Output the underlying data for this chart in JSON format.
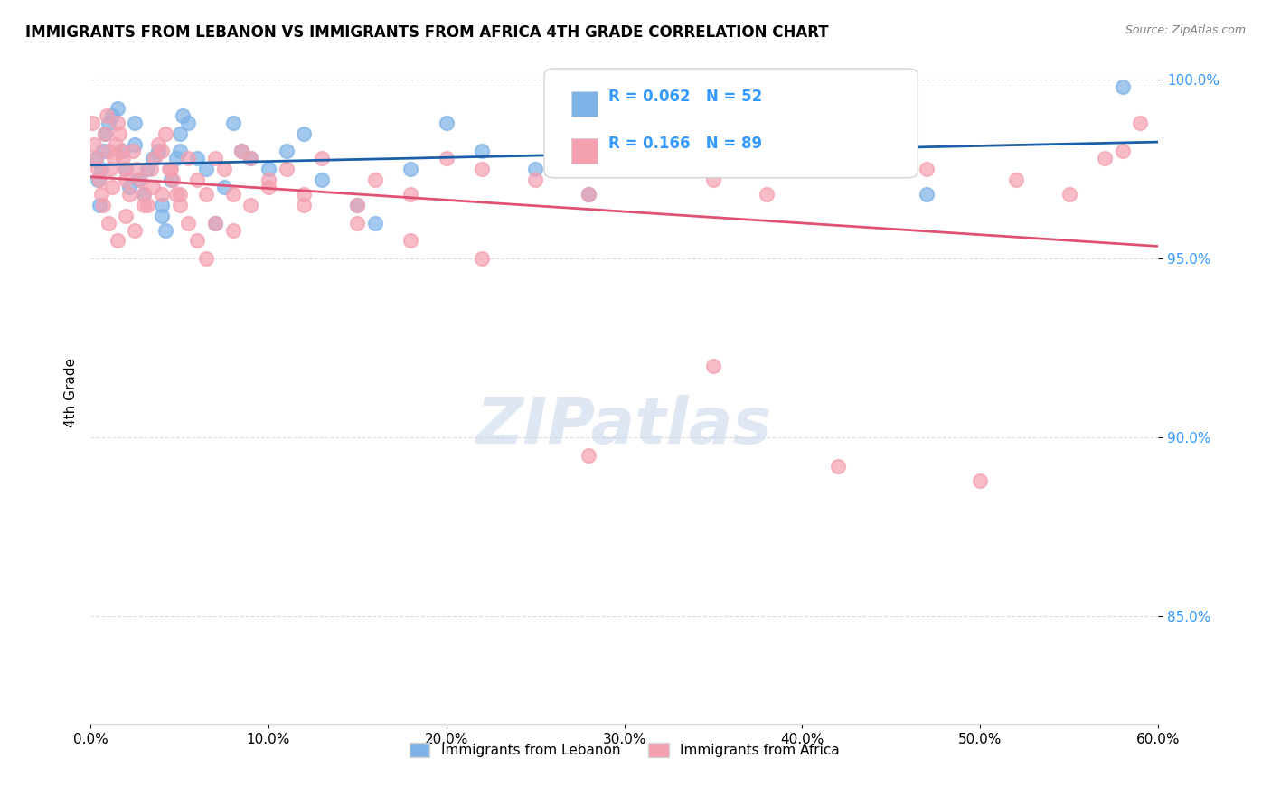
{
  "title": "IMMIGRANTS FROM LEBANON VS IMMIGRANTS FROM AFRICA 4TH GRADE CORRELATION CHART",
  "source": "Source: ZipAtlas.com",
  "xlabel_label": "",
  "ylabel_label": "4th Grade",
  "xlim": [
    0.0,
    0.6
  ],
  "ylim": [
    0.82,
    1.005
  ],
  "xtick_labels": [
    "0.0%",
    "10.0%",
    "20.0%",
    "30.0%",
    "40.0%",
    "50.0%",
    "60.0%"
  ],
  "xtick_values": [
    0.0,
    0.1,
    0.2,
    0.3,
    0.4,
    0.5,
    0.6
  ],
  "ytick_labels": [
    "85.0%",
    "90.0%",
    "95.0%",
    "100.0%"
  ],
  "ytick_values": [
    0.85,
    0.9,
    0.95,
    1.0
  ],
  "legend_label1": "Immigrants from Lebanon",
  "legend_label2": "Immigrants from Africa",
  "R1": 0.062,
  "N1": 52,
  "R2": 0.166,
  "N2": 89,
  "color1": "#7EB3E8",
  "color2": "#F4A0B0",
  "trendline1_color": "#1A5FA8",
  "trendline2_color": "#E05070",
  "watermark": "ZIPatlas",
  "watermark_color": "#C8D8EC",
  "background_color": "#FFFFFF",
  "scatter1_x": [
    0.003,
    0.004,
    0.005,
    0.006,
    0.007,
    0.008,
    0.01,
    0.012,
    0.015,
    0.018,
    0.02,
    0.022,
    0.025,
    0.025,
    0.027,
    0.03,
    0.032,
    0.035,
    0.038,
    0.04,
    0.04,
    0.042,
    0.045,
    0.048,
    0.05,
    0.05,
    0.052,
    0.055,
    0.06,
    0.065,
    0.07,
    0.075,
    0.08,
    0.085,
    0.09,
    0.1,
    0.11,
    0.12,
    0.13,
    0.15,
    0.16,
    0.18,
    0.2,
    0.22,
    0.25,
    0.28,
    0.3,
    0.35,
    0.38,
    0.42,
    0.47,
    0.58
  ],
  "scatter1_y": [
    0.978,
    0.972,
    0.965,
    0.975,
    0.98,
    0.985,
    0.988,
    0.99,
    0.992,
    0.98,
    0.975,
    0.97,
    0.982,
    0.988,
    0.972,
    0.968,
    0.975,
    0.978,
    0.98,
    0.965,
    0.962,
    0.958,
    0.972,
    0.978,
    0.98,
    0.985,
    0.99,
    0.988,
    0.978,
    0.975,
    0.96,
    0.97,
    0.988,
    0.98,
    0.978,
    0.975,
    0.98,
    0.985,
    0.972,
    0.965,
    0.96,
    0.975,
    0.988,
    0.98,
    0.975,
    0.968,
    0.985,
    0.978,
    0.98,
    0.988,
    0.968,
    0.998
  ],
  "scatter2_x": [
    0.001,
    0.002,
    0.003,
    0.004,
    0.005,
    0.006,
    0.007,
    0.008,
    0.009,
    0.01,
    0.011,
    0.012,
    0.013,
    0.014,
    0.015,
    0.016,
    0.017,
    0.018,
    0.019,
    0.02,
    0.022,
    0.024,
    0.026,
    0.028,
    0.03,
    0.032,
    0.034,
    0.036,
    0.038,
    0.04,
    0.042,
    0.044,
    0.046,
    0.048,
    0.05,
    0.055,
    0.06,
    0.065,
    0.07,
    0.075,
    0.08,
    0.085,
    0.09,
    0.1,
    0.11,
    0.12,
    0.13,
    0.15,
    0.16,
    0.18,
    0.2,
    0.22,
    0.25,
    0.28,
    0.3,
    0.32,
    0.35,
    0.38,
    0.42,
    0.47,
    0.52,
    0.55,
    0.57,
    0.58,
    0.59,
    0.01,
    0.015,
    0.02,
    0.025,
    0.03,
    0.035,
    0.04,
    0.045,
    0.05,
    0.055,
    0.06,
    0.065,
    0.07,
    0.08,
    0.09,
    0.1,
    0.12,
    0.15,
    0.18,
    0.22,
    0.28,
    0.35,
    0.42,
    0.5
  ],
  "scatter2_y": [
    0.988,
    0.982,
    0.978,
    0.975,
    0.972,
    0.968,
    0.965,
    0.985,
    0.99,
    0.98,
    0.975,
    0.97,
    0.978,
    0.982,
    0.988,
    0.985,
    0.98,
    0.978,
    0.975,
    0.972,
    0.968,
    0.98,
    0.975,
    0.972,
    0.968,
    0.965,
    0.975,
    0.978,
    0.982,
    0.98,
    0.985,
    0.975,
    0.972,
    0.968,
    0.965,
    0.978,
    0.972,
    0.968,
    0.978,
    0.975,
    0.968,
    0.98,
    0.978,
    0.972,
    0.975,
    0.968,
    0.978,
    0.965,
    0.972,
    0.968,
    0.978,
    0.975,
    0.972,
    0.968,
    0.98,
    0.975,
    0.972,
    0.968,
    0.978,
    0.975,
    0.972,
    0.968,
    0.978,
    0.98,
    0.988,
    0.96,
    0.955,
    0.962,
    0.958,
    0.965,
    0.97,
    0.968,
    0.975,
    0.968,
    0.96,
    0.955,
    0.95,
    0.96,
    0.958,
    0.965,
    0.97,
    0.965,
    0.96,
    0.955,
    0.95,
    0.895,
    0.92,
    0.892,
    0.888
  ]
}
